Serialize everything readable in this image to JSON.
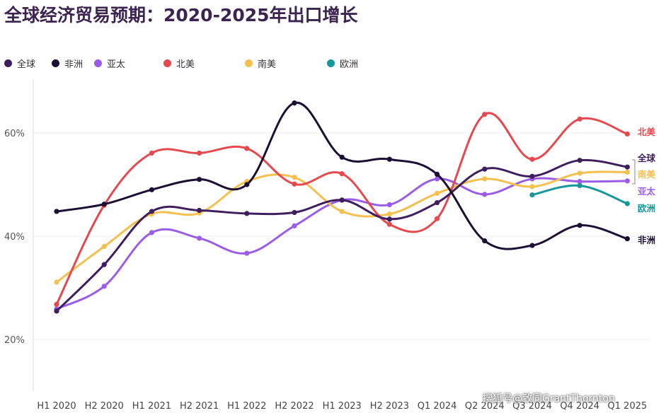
{
  "title": "全球经济贸易预期：2020-2025年出口增长",
  "watermark": "搜狐号@致同GrantThornton",
  "chart_data": {
    "type": "line",
    "title": "全球经济贸易预期：2020-2025年出口增长",
    "xlabel": "",
    "ylabel": "",
    "categories": [
      "H1 2020",
      "H2 2020",
      "H1 2021",
      "H2 2021",
      "H1 2022",
      "H2 2022",
      "H1 2023",
      "H2 2023",
      "Q1 2024",
      "Q2 2024",
      "Q3 2024",
      "Q4 2024",
      "Q1 2025"
    ],
    "y_ticks": [
      20,
      40,
      60
    ],
    "y_tick_labels": [
      "20%",
      "40%",
      "60%"
    ],
    "ylim": [
      12,
      70
    ],
    "grid": true,
    "legend_position": "top-left",
    "series": [
      {
        "name": "全球",
        "color": "#3d1e5e",
        "values": [
          25.5,
          34.5,
          44.8,
          45.0,
          44.4,
          44.6,
          47.0,
          43.3,
          46.5,
          53.0,
          51.6,
          54.7,
          53.4
        ]
      },
      {
        "name": "非洲",
        "color": "#1c0f33",
        "values": [
          44.8,
          46.2,
          49.0,
          51.0,
          50.0,
          65.8,
          55.3,
          54.9,
          52.0,
          39.1,
          38.2,
          42.1,
          39.5
        ]
      },
      {
        "name": "亚太",
        "color": "#9b5de5",
        "values": [
          25.9,
          30.3,
          40.7,
          39.6,
          36.7,
          42.0,
          47.0,
          46.1,
          51.1,
          48.1,
          51.1,
          50.6,
          50.7
        ]
      },
      {
        "name": "北美",
        "color": "#e5484d",
        "values": [
          26.8,
          46.0,
          56.1,
          56.1,
          57.0,
          50.1,
          52.1,
          42.3,
          43.4,
          63.6,
          54.9,
          62.7,
          59.8
        ]
      },
      {
        "name": "南美",
        "color": "#f4c04f",
        "values": [
          31.1,
          38.0,
          44.3,
          44.5,
          50.6,
          51.4,
          44.8,
          44.3,
          48.3,
          51.1,
          49.6,
          52.2,
          52.4
        ]
      },
      {
        "name": "欧洲",
        "color": "#17979a",
        "values": [
          null,
          null,
          null,
          null,
          null,
          null,
          null,
          null,
          null,
          null,
          48.0,
          49.8,
          46.3
        ]
      }
    ],
    "end_labels": [
      {
        "series": "北美",
        "text": "北美"
      },
      {
        "series": "全球",
        "text": "全球"
      },
      {
        "series": "南美",
        "text": "南美"
      },
      {
        "series": "亚太",
        "text": "亚太"
      },
      {
        "series": "欧洲",
        "text": "欧洲"
      },
      {
        "series": "非洲",
        "text": "非洲"
      }
    ]
  }
}
